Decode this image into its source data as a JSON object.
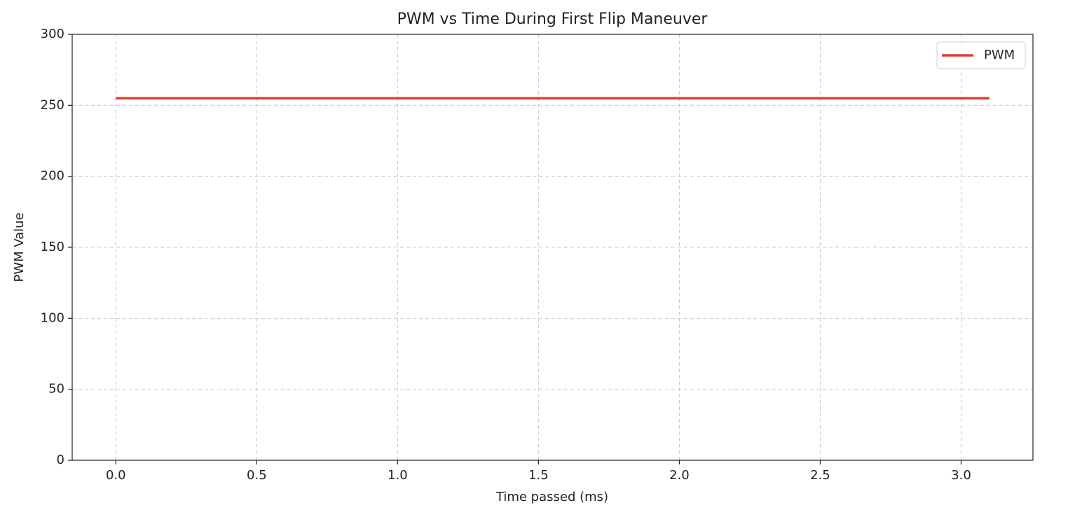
{
  "chart_data": {
    "type": "line",
    "title": "PWM vs Time During First Flip Maneuver",
    "xlabel": "Time passed (ms)",
    "ylabel": "PWM Value",
    "x": [
      0,
      3.1
    ],
    "series": [
      {
        "name": "PWM",
        "color": "#e23b2e",
        "values": [
          255,
          255
        ]
      }
    ],
    "xlim": [
      -0.155,
      3.255
    ],
    "xticks": [
      {
        "value": 0,
        "label": "0.0"
      },
      0.5,
      {
        "value": 1,
        "label": "1.0"
      },
      1.5,
      {
        "value": 2,
        "label": "2.0"
      },
      2.5,
      {
        "value": 3,
        "label": "3.0"
      }
    ],
    "ylim": [
      0,
      300
    ],
    "yticks": [
      0,
      50,
      100,
      150,
      200,
      250,
      300
    ],
    "grid": true,
    "legend": "upper right"
  }
}
